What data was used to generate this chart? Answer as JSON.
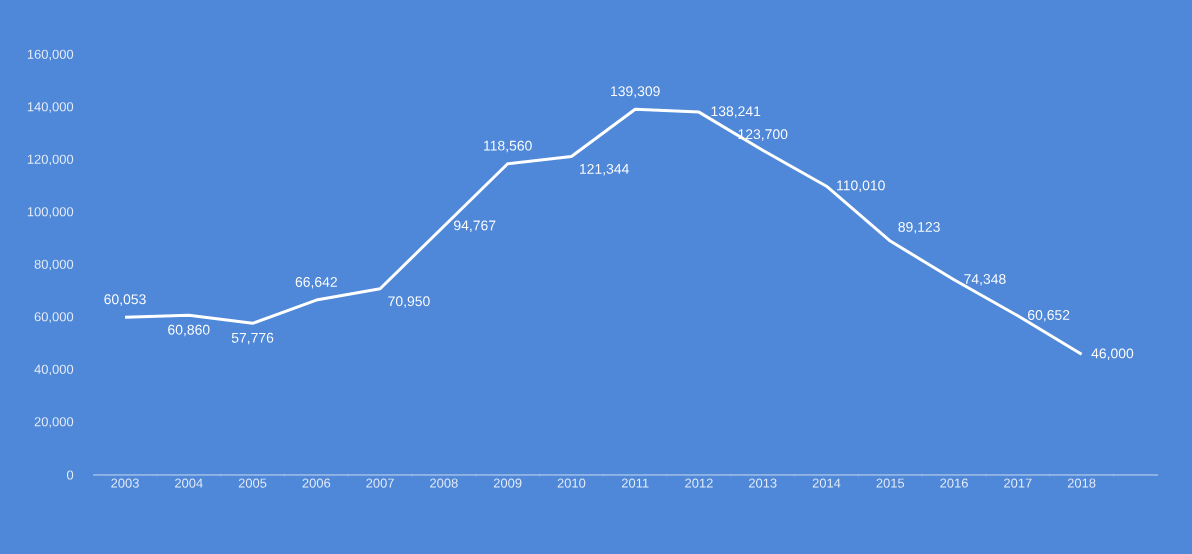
{
  "chart_data": {
    "type": "line",
    "categories": [
      "2003",
      "2004",
      "2005",
      "2006",
      "2007",
      "2008",
      "2009",
      "2010",
      "2011",
      "2012",
      "2013",
      "2014",
      "2015",
      "2016",
      "2017",
      "2018"
    ],
    "series": [
      {
        "color": "#ffffff",
        "values": [
          60053,
          60860,
          57776,
          66642,
          70950,
          94767,
          118560,
          121344,
          139309,
          138241,
          123700,
          110010,
          89123,
          74348,
          60652,
          46000
        ]
      }
    ],
    "ylim": [
      0,
      160000
    ],
    "yticks": [
      {
        "value": 0,
        "label": "0"
      },
      {
        "value": 20000,
        "label": "20,000"
      },
      {
        "value": 40000,
        "label": "40,000"
      },
      {
        "value": 60000,
        "label": "60,000"
      },
      {
        "value": 80000,
        "label": "80,000"
      },
      {
        "value": 100000,
        "label": "100,000"
      },
      {
        "value": 120000,
        "label": "120,000"
      },
      {
        "value": 140000,
        "label": "140,000"
      },
      {
        "value": 160000,
        "label": "160,000"
      }
    ],
    "value_labels": [
      "60,053",
      "60,860",
      "57,776",
      "66,642",
      "70,950",
      "94,767",
      "118,560",
      "121,344",
      "139,309",
      "138,241",
      "123,700",
      "110,010",
      "89,123",
      "74,348",
      "60,652",
      "46,000"
    ],
    "grid": false,
    "marker": "none",
    "line_style": "solid"
  }
}
